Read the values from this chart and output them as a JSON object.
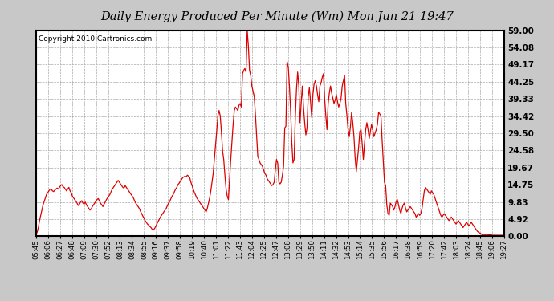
{
  "title": "Daily Energy Produced Per Minute (Wm) Mon Jun 21 19:47",
  "copyright": "Copyright 2010 Cartronics.com",
  "ylabel_values": [
    0.0,
    4.92,
    9.83,
    14.75,
    19.67,
    24.58,
    29.5,
    34.42,
    39.33,
    44.25,
    49.17,
    54.08,
    59.0
  ],
  "ymin": 0.0,
  "ymax": 59.0,
  "line_color": "#dd0000",
  "bg_color": "#ffffff",
  "plot_bg_color": "#ffffff",
  "outer_bg": "#c8c8c8",
  "grid_color": "#aaaaaa",
  "x_tick_labels": [
    "05:45",
    "06:06",
    "06:27",
    "06:48",
    "07:09",
    "07:30",
    "07:52",
    "08:13",
    "08:34",
    "08:55",
    "09:16",
    "09:37",
    "09:58",
    "10:19",
    "10:40",
    "11:01",
    "11:22",
    "11:43",
    "12:04",
    "12:25",
    "12:47",
    "13:08",
    "13:29",
    "13:50",
    "14:11",
    "14:32",
    "14:53",
    "15:14",
    "15:35",
    "15:56",
    "16:17",
    "16:38",
    "16:59",
    "17:20",
    "17:42",
    "18:03",
    "18:24",
    "18:45",
    "19:06",
    "19:27"
  ],
  "data_y": [
    0.5,
    1.2,
    2.5,
    4.5,
    6.0,
    7.5,
    9.0,
    10.0,
    11.0,
    12.0,
    12.5,
    13.0,
    13.5,
    13.5,
    13.0,
    12.8,
    13.2,
    13.5,
    13.8,
    13.5,
    14.0,
    14.5,
    14.8,
    14.2,
    14.0,
    13.5,
    13.0,
    13.5,
    14.0,
    13.0,
    12.5,
    11.5,
    11.0,
    10.5,
    10.0,
    9.5,
    8.8,
    9.2,
    9.8,
    10.2,
    9.5,
    9.2,
    9.8,
    9.0,
    8.5,
    8.0,
    7.5,
    7.8,
    8.5,
    9.0,
    9.5,
    10.0,
    10.5,
    10.8,
    10.2,
    9.5,
    9.0,
    8.5,
    9.2,
    9.8,
    10.5,
    11.0,
    11.5,
    12.0,
    12.8,
    13.5,
    14.0,
    14.5,
    15.0,
    15.5,
    16.0,
    15.5,
    15.0,
    14.5,
    14.0,
    13.8,
    14.5,
    14.0,
    13.5,
    13.0,
    12.5,
    12.0,
    11.5,
    11.0,
    10.2,
    9.5,
    9.0,
    8.5,
    8.0,
    7.2,
    6.5,
    5.8,
    5.2,
    4.5,
    4.0,
    3.5,
    3.2,
    2.8,
    2.5,
    2.0,
    1.8,
    2.2,
    2.8,
    3.5,
    4.2,
    4.8,
    5.5,
    6.0,
    6.5,
    7.0,
    7.5,
    8.0,
    8.8,
    9.5,
    10.0,
    10.8,
    11.5,
    12.0,
    12.8,
    13.5,
    14.0,
    14.8,
    15.2,
    15.8,
    16.2,
    16.8,
    17.0,
    17.2,
    17.0,
    17.5,
    17.2,
    16.8,
    15.5,
    14.5,
    13.5,
    12.5,
    11.8,
    11.0,
    10.5,
    10.0,
    9.5,
    9.0,
    8.5,
    8.0,
    7.5,
    7.0,
    8.0,
    9.5,
    11.0,
    13.0,
    15.5,
    18.0,
    22.0,
    26.0,
    30.0,
    34.5,
    36.0,
    34.5,
    30.0,
    24.5,
    22.0,
    17.5,
    13.5,
    11.5,
    10.5,
    16.5,
    22.0,
    27.0,
    32.0,
    36.0,
    37.0,
    36.5,
    36.0,
    37.5,
    38.0,
    37.0,
    46.5,
    47.5,
    48.0,
    47.0,
    59.0,
    54.5,
    47.5,
    46.0,
    43.0,
    41.5,
    40.0,
    35.0,
    29.0,
    23.0,
    22.0,
    21.0,
    20.5,
    20.0,
    19.0,
    18.0,
    17.5,
    16.5,
    16.0,
    15.5,
    15.0,
    14.5,
    14.8,
    15.5,
    19.0,
    22.0,
    21.0,
    15.5,
    15.0,
    15.5,
    17.5,
    20.0,
    31.0,
    31.5,
    50.0,
    48.5,
    43.0,
    36.0,
    27.0,
    21.0,
    22.0,
    34.0,
    42.0,
    47.0,
    43.0,
    32.5,
    38.0,
    43.0,
    37.0,
    32.5,
    29.0,
    31.0,
    40.0,
    42.5,
    38.5,
    34.0,
    40.5,
    43.5,
    44.5,
    43.0,
    40.5,
    38.5,
    43.0,
    44.0,
    45.5,
    46.5,
    39.5,
    34.5,
    30.5,
    38.0,
    41.0,
    43.0,
    41.0,
    39.5,
    38.0,
    39.0,
    40.5,
    38.5,
    37.0,
    38.0,
    39.5,
    43.0,
    44.5,
    46.0,
    38.0,
    34.5,
    30.5,
    28.5,
    31.5,
    35.5,
    32.5,
    28.5,
    22.5,
    18.5,
    22.0,
    25.5,
    30.0,
    30.5,
    26.5,
    22.0,
    26.5,
    30.5,
    32.5,
    30.5,
    28.0,
    30.0,
    32.0,
    30.5,
    28.5,
    29.5,
    30.5,
    32.0,
    35.5,
    35.0,
    34.5,
    27.5,
    21.5,
    15.5,
    14.5,
    9.0,
    6.5,
    6.0,
    9.5,
    9.0,
    8.5,
    7.5,
    8.5,
    10.0,
    10.5,
    9.0,
    7.5,
    6.5,
    8.0,
    9.0,
    9.5,
    8.0,
    7.0,
    7.5,
    8.0,
    8.5,
    8.0,
    7.5,
    7.0,
    6.5,
    5.5,
    6.0,
    6.5,
    6.0,
    6.5,
    8.0,
    10.5,
    13.0,
    14.0,
    13.5,
    13.0,
    12.5,
    12.0,
    13.0,
    12.5,
    12.0,
    11.0,
    10.0,
    9.0,
    8.0,
    7.0,
    6.0,
    5.5,
    6.0,
    6.5,
    6.0,
    5.5,
    5.0,
    4.5,
    5.0,
    5.5,
    5.0,
    4.5,
    4.0,
    3.5,
    4.0,
    4.5,
    4.0,
    3.5,
    3.0,
    2.5,
    3.0,
    3.5,
    4.0,
    3.5,
    3.0,
    3.5,
    4.0,
    3.5,
    3.0,
    2.5,
    2.0,
    1.5,
    1.2,
    1.0,
    0.8,
    0.5,
    0.4,
    0.3,
    0.5,
    0.5,
    0.5,
    0.4,
    0.4,
    0.4,
    0.3,
    0.3,
    0.3,
    0.3,
    0.3,
    0.3,
    0.3,
    0.3,
    0.3,
    0.3,
    0.2
  ]
}
